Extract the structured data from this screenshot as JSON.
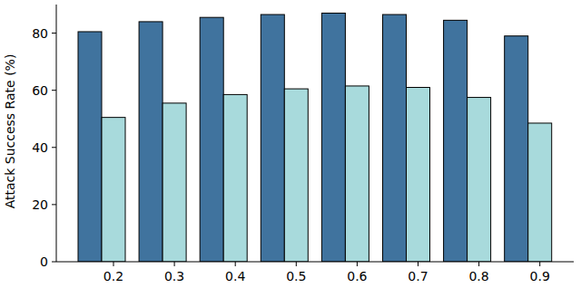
{
  "chart_data": {
    "type": "bar",
    "y_label": "Attack Success Rate (%)",
    "categories": [
      "0.2",
      "0.3",
      "0.4",
      "0.5",
      "0.6",
      "0.7",
      "0.8",
      "0.9"
    ],
    "series": [
      {
        "color": "#40739e",
        "values": [
          80.5,
          84,
          85.5,
          86.5,
          87,
          86.5,
          84.5,
          79
        ]
      },
      {
        "color": "#a8dadc",
        "values": [
          50.5,
          55.5,
          58.5,
          60.5,
          61.5,
          61,
          57.5,
          48.5
        ]
      }
    ],
    "ylim": [
      0,
      90
    ],
    "yticks": [
      0,
      20,
      40,
      60,
      80
    ],
    "grid": false
  }
}
